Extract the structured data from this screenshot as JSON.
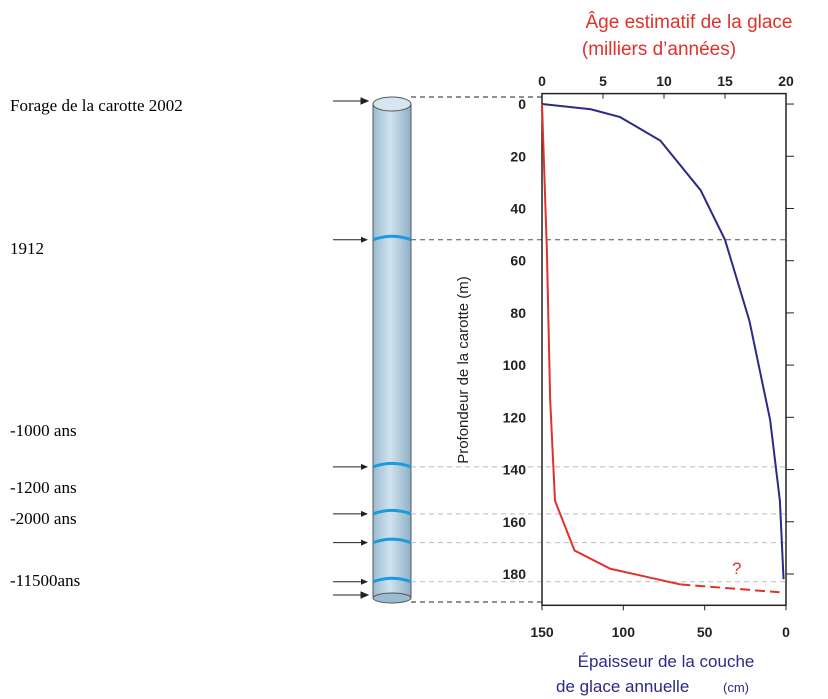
{
  "chart_data": {
    "type": "line",
    "x2label": [
      "Âge estimatif de la glace",
      "(milliers d’années)"
    ],
    "xlabel": [
      "Épaisseur de la couche",
      "de glace annuelle",
      "(cm)"
    ],
    "ylabel": "Profondeur de la carotte (m)",
    "annotation": "?",
    "ylim": [
      -4,
      192
    ],
    "yticks": [
      0,
      20,
      40,
      60,
      80,
      100,
      120,
      140,
      160,
      180
    ],
    "xlim": [
      150,
      0
    ],
    "xticks": [
      150,
      100,
      50,
      0
    ],
    "x2lim": [
      0,
      20
    ],
    "x2ticks": [
      0,
      5,
      10,
      15,
      20
    ],
    "markers": [
      52,
      139,
      157,
      168,
      183
    ],
    "core_labels": [
      "Forage de la carotte 2002",
      "1912",
      "-1000 ans",
      "-1200 ans",
      "-2000 ans",
      "-11500ans"
    ],
    "series": [
      {
        "color": "#2b2a86",
        "axis": "x2",
        "dash": false,
        "x": [
          0,
          4,
          6.4,
          9.7,
          13,
          15,
          17,
          18.7,
          19.5,
          19.8
        ],
        "y": [
          0,
          2,
          5,
          14,
          33,
          52,
          83,
          121,
          152,
          182
        ]
      },
      {
        "color": "#e0322b",
        "axis": "x",
        "dash": false,
        "x": [
          150,
          147,
          145,
          142,
          130,
          108,
          65
        ],
        "y": [
          0,
          56,
          113,
          152,
          171,
          178,
          184
        ]
      },
      {
        "color": "#e0322b",
        "axis": "x",
        "dash": true,
        "x": [
          65,
          4
        ],
        "y": [
          184,
          187
        ]
      }
    ]
  }
}
